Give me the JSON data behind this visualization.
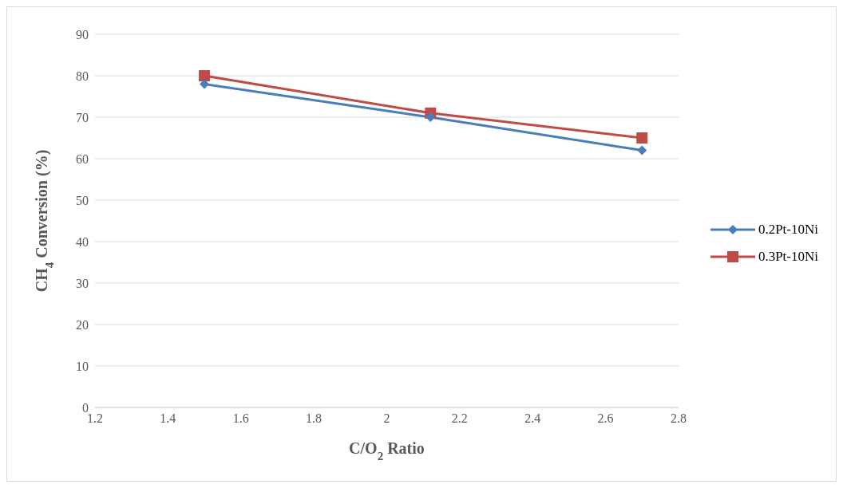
{
  "chart_data": {
    "type": "line",
    "xlabel": "C/O$_{2}$ Ratio",
    "ylabel": "CH$_{4}$ Conversion (%)",
    "x": [
      1.5,
      2.12,
      2.7
    ],
    "series": [
      {
        "name": "0.2Pt-10Ni",
        "color": "#4a7ebb",
        "marker": "diamond",
        "values": [
          78,
          70,
          62
        ]
      },
      {
        "name": "0.3Pt-10Ni",
        "color": "#be4b48",
        "marker": "square",
        "values": [
          80,
          71,
          65
        ]
      }
    ],
    "xlim": [
      1.2,
      2.8
    ],
    "xticks": [
      1.2,
      1.4,
      1.6,
      1.8,
      2,
      2.2,
      2.4,
      2.6,
      2.8
    ],
    "ylim": [
      0,
      90
    ],
    "yticks": [
      0,
      10,
      20,
      30,
      40,
      50,
      60,
      70,
      80,
      90
    ],
    "grid": "y",
    "legend": "right",
    "line_style": "solid"
  }
}
